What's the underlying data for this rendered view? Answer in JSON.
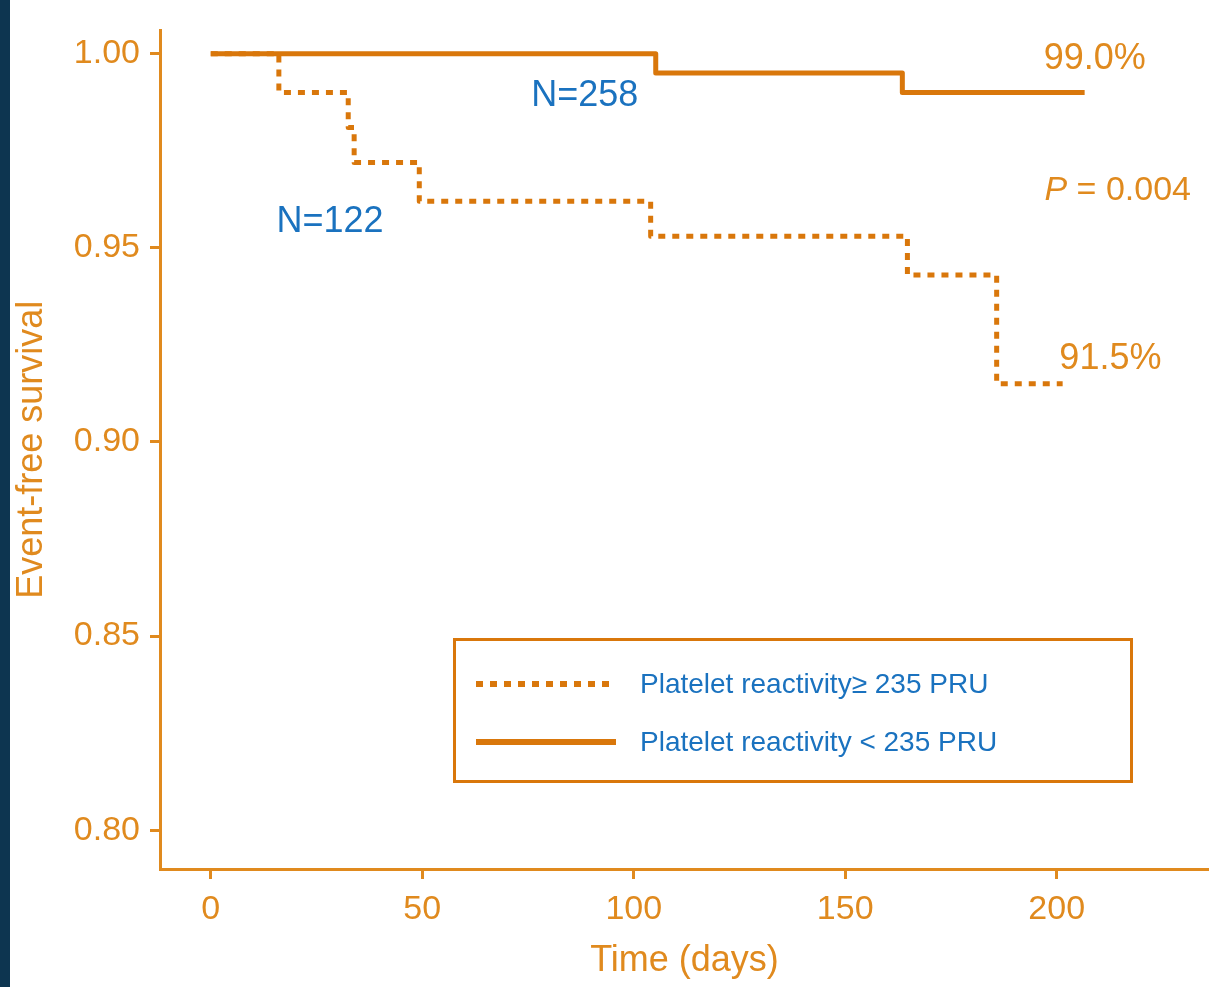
{
  "chart_data": {
    "type": "step",
    "xlabel": "Time (days)",
    "ylabel": "Event-free survival",
    "xlim": [
      -12,
      236
    ],
    "ylim": [
      0.79,
      1.006
    ],
    "xticks": [
      0,
      50,
      100,
      150,
      200
    ],
    "yticks": [
      {
        "value": 0.8,
        "label": "0.80"
      },
      {
        "value": 0.85,
        "label": "0.85"
      },
      {
        "value": 0.9,
        "label": "0.90"
      },
      {
        "value": 0.95,
        "label": "0.95"
      },
      {
        "value": 1.0,
        "label": "1.00"
      }
    ],
    "grid": false,
    "legend": "bottom right",
    "marker": "none",
    "series": [
      {
        "name": "Platelet reactivity≥ 235 PRU",
        "color": "#d9770b",
        "line_style": "dotted",
        "x": [
          0,
          16.1,
          32.5,
          33.9,
          49.3,
          104,
          164.7,
          185.8,
          201.4
        ],
        "values": [
          1,
          0.99,
          0.981,
          0.972,
          0.962,
          0.953,
          0.943,
          0.915,
          0.915
        ]
      },
      {
        "name": "Platelet reactivity < 235 PRU",
        "color": "#d9770b",
        "line_style": "solid",
        "x": [
          0,
          105.2,
          163.5,
          206.6
        ],
        "values": [
          1,
          0.995,
          0.99,
          0.99
        ]
      }
    ],
    "annotations": [
      "N=258",
      "N=122",
      "99.0%",
      "91.5%",
      "P = 0.004"
    ]
  }
}
